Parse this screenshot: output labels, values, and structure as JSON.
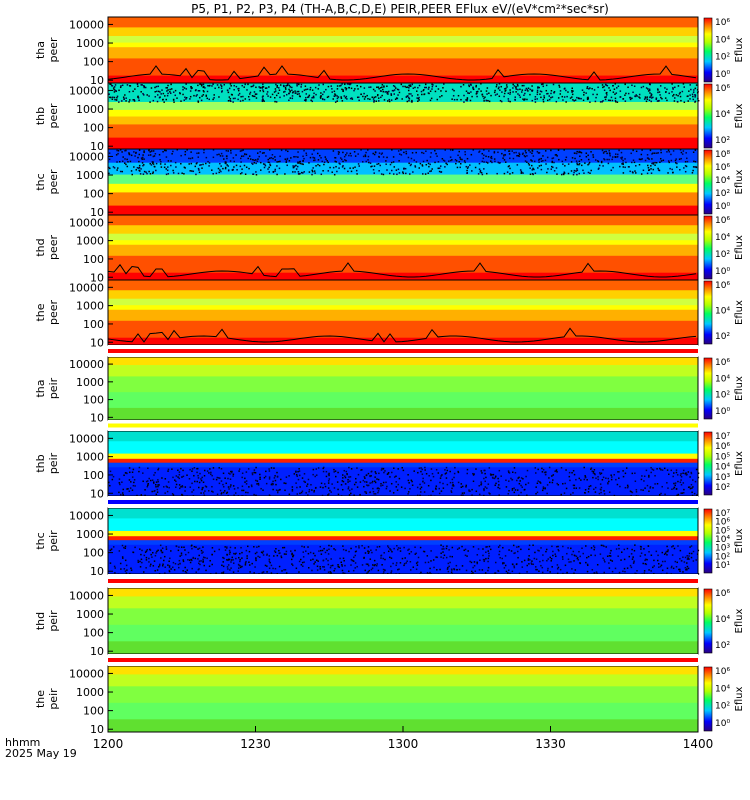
{
  "title": "P5, P1, P2, P3, P4 (TH-A,B,C,D,E) PEIR,PEER EFlux eV/(eV*cm²*sec*sr)",
  "time_axis": {
    "label_line1": "hhmm",
    "label_line2": "2025 May 19",
    "ticks": [
      "1200",
      "1230",
      "1300",
      "1330",
      "1400"
    ],
    "range_minutes": [
      0,
      120
    ],
    "tick_minutes": [
      0,
      30,
      60,
      90,
      120
    ]
  },
  "colorbar_label": "Eflux",
  "chart_data": [
    {
      "type": "heatmap",
      "ylabel": [
        "tha",
        "peer"
      ],
      "y_ticks": [
        "10000",
        "1000",
        "100",
        "10"
      ],
      "cbar_ticks": [
        "10⁶",
        "10⁴",
        "10²",
        "10⁰"
      ],
      "scale": "log",
      "density_line": true,
      "palette": "warm"
    },
    {
      "type": "heatmap",
      "ylabel": [
        "thb",
        "peer"
      ],
      "y_ticks": [
        "10000",
        "1000",
        "100",
        "10"
      ],
      "cbar_ticks": [
        "10⁶",
        "10⁴",
        "10²"
      ],
      "scale": "log",
      "density_line": false,
      "palette": "cyan-top"
    },
    {
      "type": "heatmap",
      "ylabel": [
        "thc",
        "peer"
      ],
      "y_ticks": [
        "10000",
        "1000",
        "100",
        "10"
      ],
      "cbar_ticks": [
        "10⁸",
        "10⁶",
        "10⁴",
        "10²",
        "10⁰"
      ],
      "scale": "log",
      "density_line": false,
      "palette": "blue-top"
    },
    {
      "type": "heatmap",
      "ylabel": [
        "thd",
        "peer"
      ],
      "y_ticks": [
        "10000",
        "1000",
        "100",
        "10"
      ],
      "cbar_ticks": [
        "10⁶",
        "10⁴",
        "10²",
        "10⁰"
      ],
      "scale": "log",
      "density_line": true,
      "palette": "warm"
    },
    {
      "type": "heatmap",
      "ylabel": [
        "the",
        "peer"
      ],
      "y_ticks": [
        "10000",
        "1000",
        "100",
        "10"
      ],
      "cbar_ticks": [
        "10⁶",
        "10⁴",
        "10²"
      ],
      "scale": "log",
      "density_line": true,
      "palette": "warm"
    },
    {
      "type": "heatmap",
      "ylabel": [
        "tha",
        "peir"
      ],
      "y_ticks": [
        "10000",
        "1000",
        "100",
        "10"
      ],
      "cbar_ticks": [
        "10⁶",
        "10⁴",
        "10²",
        "10⁰"
      ],
      "scale": "log",
      "density_line": false,
      "palette": "green"
    },
    {
      "type": "heatmap",
      "ylabel": [
        "thb",
        "peir"
      ],
      "y_ticks": [
        "10000",
        "1000",
        "100",
        "10"
      ],
      "cbar_ticks": [
        "10⁷",
        "10⁶",
        "10⁵",
        "10⁴",
        "10³",
        "10²"
      ],
      "scale": "log",
      "density_line": false,
      "palette": "blue-noise"
    },
    {
      "type": "heatmap",
      "ylabel": [
        "thc",
        "peir"
      ],
      "y_ticks": [
        "10000",
        "1000",
        "100",
        "10"
      ],
      "cbar_ticks": [
        "10⁷",
        "10⁶",
        "10⁵",
        "10⁴",
        "10³",
        "10²",
        "10¹"
      ],
      "scale": "log",
      "density_line": false,
      "palette": "blue-noise"
    },
    {
      "type": "heatmap",
      "ylabel": [
        "thd",
        "peir"
      ],
      "y_ticks": [
        "10000",
        "1000",
        "100",
        "10"
      ],
      "cbar_ticks": [
        "10⁶",
        "10⁴",
        "10²"
      ],
      "scale": "log",
      "density_line": false,
      "palette": "green"
    },
    {
      "type": "heatmap",
      "ylabel": [
        "the",
        "peir"
      ],
      "y_ticks": [
        "10000",
        "1000",
        "100",
        "10"
      ],
      "cbar_ticks": [
        "10⁶",
        "10⁴",
        "10²",
        "10⁰"
      ],
      "scale": "log",
      "density_line": false,
      "palette": "green"
    }
  ]
}
